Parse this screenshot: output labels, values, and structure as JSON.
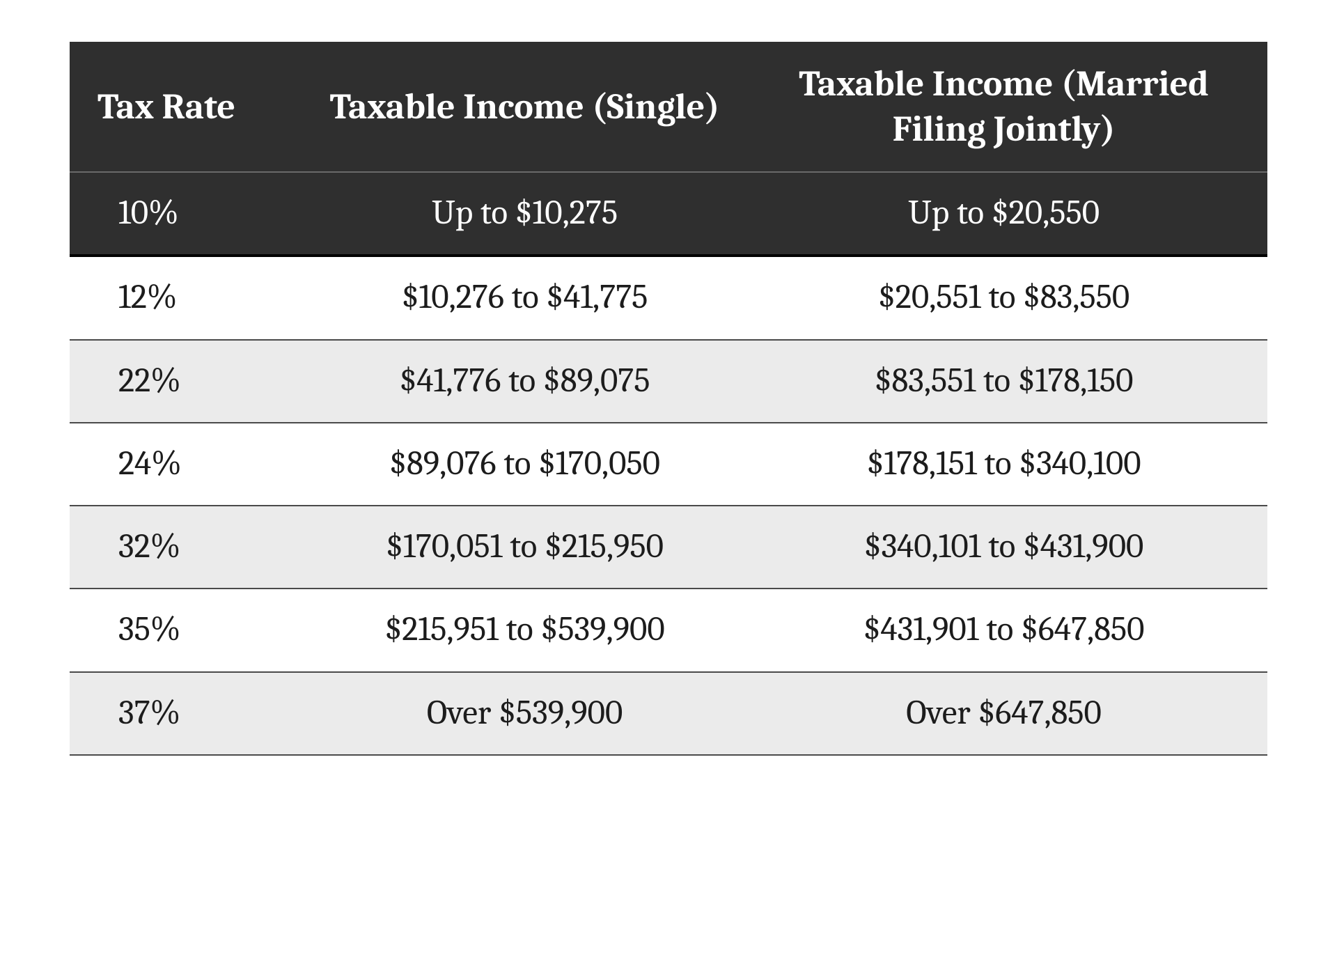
{
  "table": {
    "type": "table",
    "background_color": "#ffffff",
    "header_bg": "#2f2f2f",
    "header_text_color": "#ffffff",
    "row_alt_bg": "#ebebeb",
    "row_bg": "#ffffff",
    "text_color": "#1c1c1c",
    "border_color": "#4a4a4a",
    "heavy_border_color": "#000000",
    "header_fontsize_pt": 39,
    "cell_fontsize_pt": 37,
    "font_family": "Cambria serif",
    "column_widths_pct": [
      20,
      36,
      44
    ],
    "columns": [
      "Tax Rate",
      "Taxable Income (Single)",
      "Taxable Income (Married Filing Jointly)"
    ],
    "rows": [
      {
        "rate": "10%",
        "single": "Up to $10,275",
        "married": "Up to $20,550",
        "in_header_block": true
      },
      {
        "rate": "12%",
        "single": "$10,276 to $41,775",
        "married": "$20,551 to $83,550",
        "in_header_block": false
      },
      {
        "rate": "22%",
        "single": "$41,776 to $89,075",
        "married": "$83,551 to $178,150",
        "in_header_block": false
      },
      {
        "rate": "24%",
        "single": "$89,076 to $170,050",
        "married": "$178,151 to $340,100",
        "in_header_block": false
      },
      {
        "rate": "32%",
        "single": "$170,051 to $215,950",
        "married": "$340,101 to $431,900",
        "in_header_block": false
      },
      {
        "rate": "35%",
        "single": "$215,951 to $539,900",
        "married": "$431,901 to $647,850",
        "in_header_block": false
      },
      {
        "rate": "37%",
        "single": "Over $539,900",
        "married": "Over $647,850",
        "in_header_block": false
      }
    ]
  }
}
